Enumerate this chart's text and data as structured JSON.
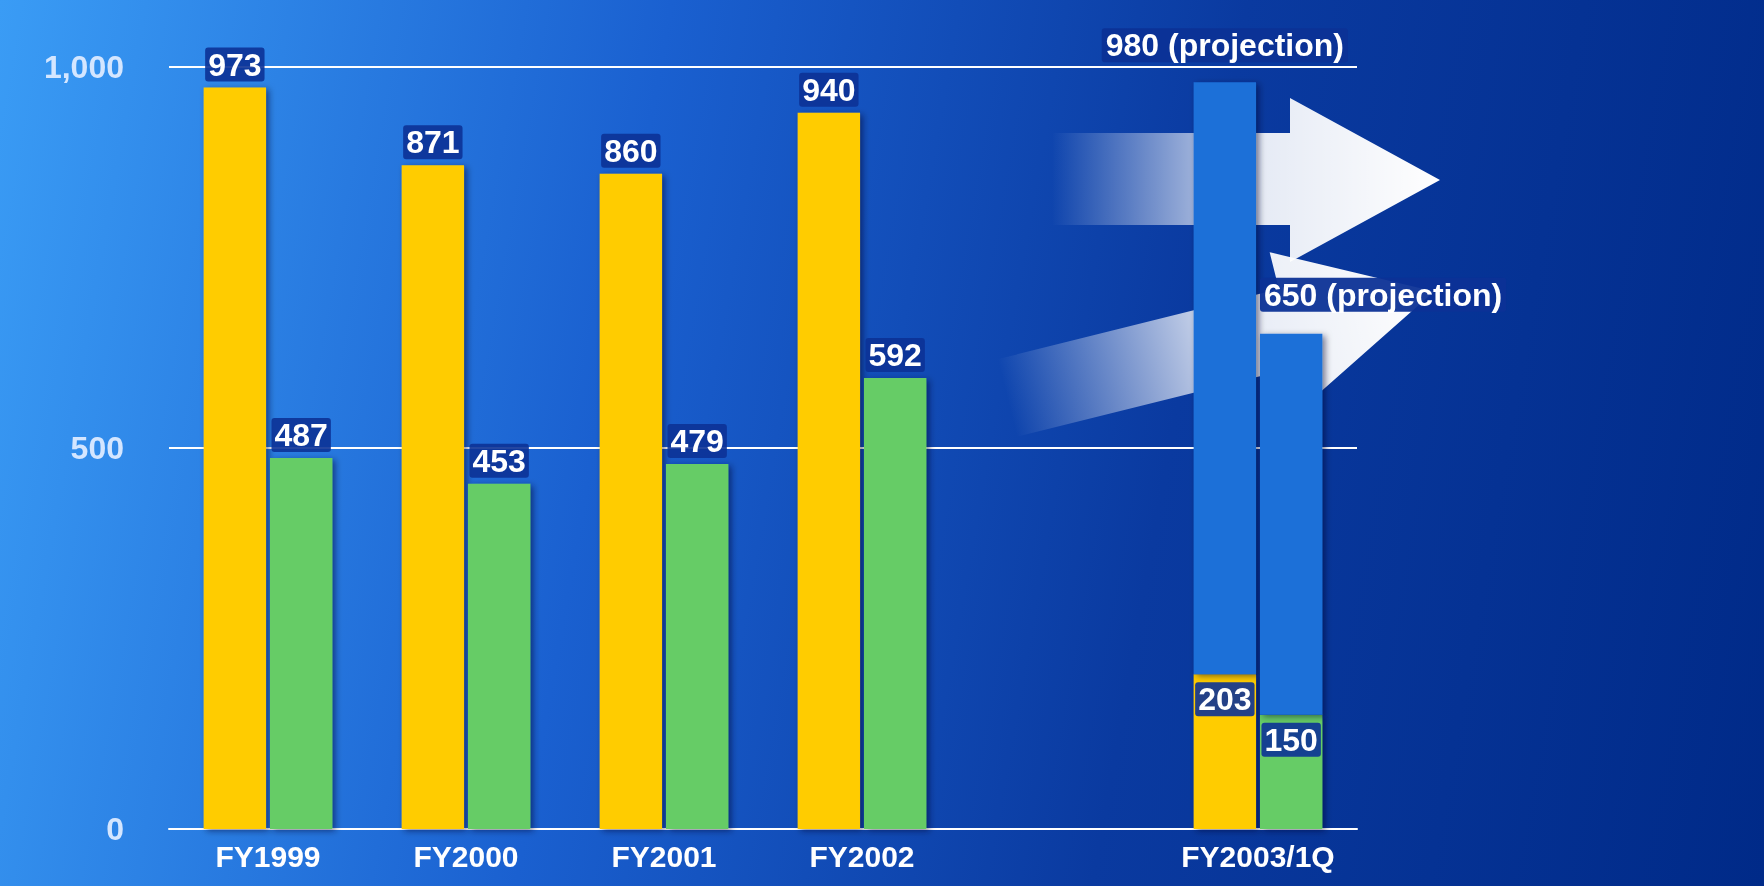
{
  "chart_data": {
    "type": "bar",
    "categories": [
      "FY1999",
      "FY2000",
      "FY2001",
      "FY2002",
      null,
      "FY2003/1Q"
    ],
    "series": [
      {
        "color": "#ffcc00",
        "values": [
          973,
          871,
          860,
          940,
          null,
          203
        ],
        "value_labels": [
          "973",
          "871",
          "860",
          "940",
          null,
          "203"
        ]
      },
      {
        "color": "#66cc66",
        "values": [
          487,
          453,
          479,
          592,
          null,
          150
        ],
        "value_labels": [
          "487",
          "453",
          "479",
          "592",
          null,
          "150"
        ]
      },
      {
        "color": "#1a6fd8",
        "values": [
          null,
          null,
          null,
          null,
          null,
          777
        ],
        "base": [
          null,
          null,
          null,
          null,
          null,
          203
        ]
      },
      {
        "color": "#1a6fd8",
        "values": [
          null,
          null,
          null,
          null,
          null,
          500
        ],
        "base": [
          null,
          null,
          null,
          null,
          null,
          150
        ]
      }
    ],
    "ylim": [
      0,
      1000
    ],
    "yticks": [
      0,
      500,
      {
        "value": 1000,
        "label": "1,000"
      }
    ],
    "grid": "y",
    "annotations": [
      {
        "text": "980 (projection)",
        "x": "FY2003/1Q",
        "y": 980
      },
      {
        "text": "650 (projection)",
        "x": "FY2003/1Q",
        "y": 650
      }
    ]
  }
}
